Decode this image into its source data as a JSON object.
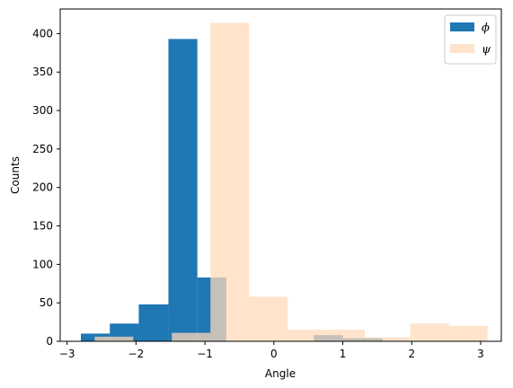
{
  "chart_data": {
    "type": "bar",
    "title": "",
    "xlabel": "Angle",
    "ylabel": "Counts",
    "xlim": [
      -3.1,
      3.3
    ],
    "ylim": [
      0,
      432
    ],
    "xticks": [
      -3,
      -2,
      -1,
      0,
      1,
      2,
      3
    ],
    "yticks": [
      0,
      50,
      100,
      150,
      200,
      250,
      300,
      350,
      400
    ],
    "grid": false,
    "legend_position": "top-right",
    "series": [
      {
        "name": "ϕ",
        "color": "#1f77b4",
        "opacity": 1.0,
        "bins": [
          {
            "x0": -2.8,
            "x1": -2.38,
            "count": 10
          },
          {
            "x0": -2.38,
            "x1": -1.96,
            "count": 23
          },
          {
            "x0": -1.96,
            "x1": -1.53,
            "count": 48
          },
          {
            "x0": -1.53,
            "x1": -1.11,
            "count": 393
          },
          {
            "x0": -1.11,
            "x1": -0.69,
            "count": 83
          },
          {
            "x0": 0.58,
            "x1": 1.0,
            "count": 8
          },
          {
            "x0": 1.0,
            "x1": 1.58,
            "count": 4
          }
        ]
      },
      {
        "name": "ψ",
        "color": "#ffdab9",
        "opacity": 0.75,
        "bins": [
          {
            "x0": -2.6,
            "x1": -2.04,
            "count": 6
          },
          {
            "x0": -1.48,
            "x1": -0.92,
            "count": 11
          },
          {
            "x0": -0.92,
            "x1": -0.36,
            "count": 414
          },
          {
            "x0": -0.36,
            "x1": 0.2,
            "count": 58
          },
          {
            "x0": 0.2,
            "x1": 0.76,
            "count": 15
          },
          {
            "x0": 0.76,
            "x1": 1.32,
            "count": 15
          },
          {
            "x0": 1.32,
            "x1": 1.98,
            "count": 5
          },
          {
            "x0": 1.98,
            "x1": 2.54,
            "count": 23
          },
          {
            "x0": 2.54,
            "x1": 3.1,
            "count": 20
          }
        ]
      }
    ]
  }
}
